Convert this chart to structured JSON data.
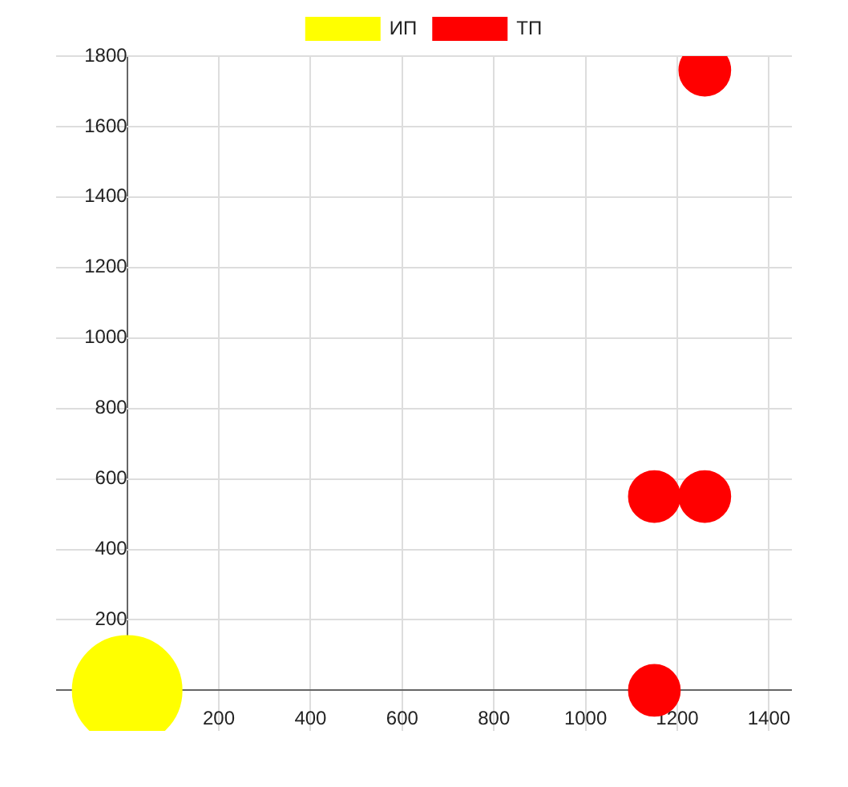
{
  "chart_data": {
    "type": "bubble",
    "legend": "top",
    "grid": true,
    "xlim": [
      -155,
      1450
    ],
    "ylim": [
      -115,
      1800
    ],
    "xticks": [
      {
        "value": 0,
        "label": null
      },
      200,
      400,
      600,
      800,
      1000,
      1200,
      1400
    ],
    "yticks": [
      {
        "value": 0,
        "label": null
      },
      200,
      400,
      600,
      800,
      1000,
      1200,
      1400,
      1600,
      1800
    ],
    "series": [
      {
        "name": "ИП",
        "color": "#ffff00",
        "x": [
          0
        ],
        "values": [
          0
        ],
        "sizes": [
          1
        ]
      },
      {
        "name": "ТП",
        "color": "#ff0000",
        "x": [
          1150,
          1150,
          1260,
          1260
        ],
        "values": [
          0,
          550,
          550,
          1760
        ],
        "sizes": [
          0.22,
          0.22,
          0.22,
          0.22
        ]
      }
    ]
  }
}
